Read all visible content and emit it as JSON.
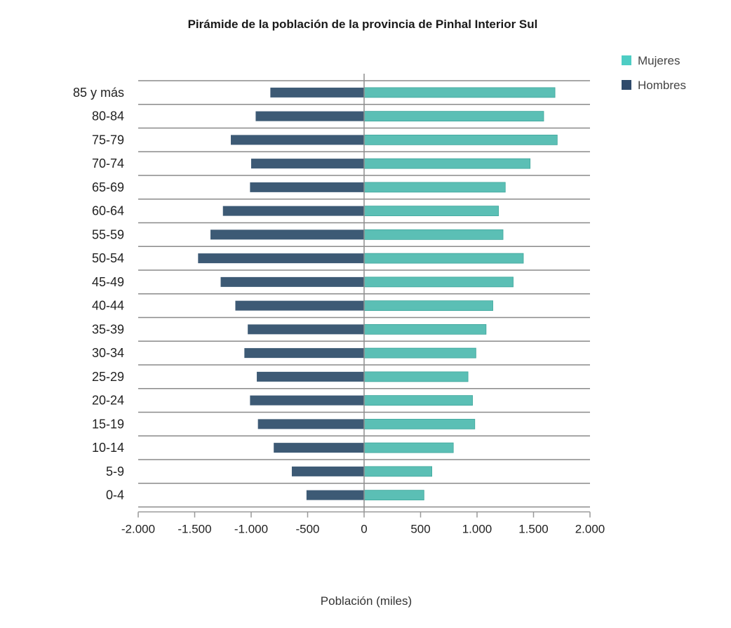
{
  "chart_data": {
    "type": "bar",
    "orientation": "horizontal",
    "title": "Pirámide de la población de la provincia de Pinhal Interior Sul",
    "xlabel": "Población (miles)",
    "ylabel": "",
    "categories": [
      "85 y más",
      "80-84",
      "75-79",
      "70-74",
      "65-69",
      "60-64",
      "55-59",
      "50-54",
      "45-49",
      "40-44",
      "35-39",
      "30-34",
      "25-29",
      "20-24",
      "15-19",
      "10-14",
      "5-9",
      "0-4"
    ],
    "series": [
      {
        "name": "Mujeres",
        "color": "#4ecdc4",
        "values": [
          1690,
          1590,
          1710,
          1470,
          1250,
          1190,
          1230,
          1410,
          1320,
          1140,
          1080,
          990,
          920,
          960,
          980,
          790,
          600,
          530
        ]
      },
      {
        "name": "Hombres",
        "color": "#2f4a6b",
        "values": [
          -830,
          -960,
          -1180,
          -1000,
          -1010,
          -1250,
          -1360,
          -1470,
          -1270,
          -1140,
          -1030,
          -1060,
          -950,
          -1010,
          -940,
          -800,
          -640,
          -510
        ]
      }
    ],
    "xlim": [
      -2000,
      2000
    ],
    "xticks": [
      "-2.000",
      "-1.500",
      "-1.000",
      "-500",
      "0",
      "500",
      "1.000",
      "1.500",
      "2.000"
    ],
    "xtick_values": [
      -2000,
      -1500,
      -1000,
      -500,
      0,
      500,
      1000,
      1500,
      2000
    ],
    "grid": "horizontal",
    "legend": "top-right"
  },
  "colors": {
    "mujeres": "#4ecdc4",
    "hombres": "#2f4a6b",
    "bar_mujeres": "#5bbfb5",
    "bar_hombres": "#3d5a75",
    "grid": "#8a8a8a",
    "axis": "#999999"
  }
}
